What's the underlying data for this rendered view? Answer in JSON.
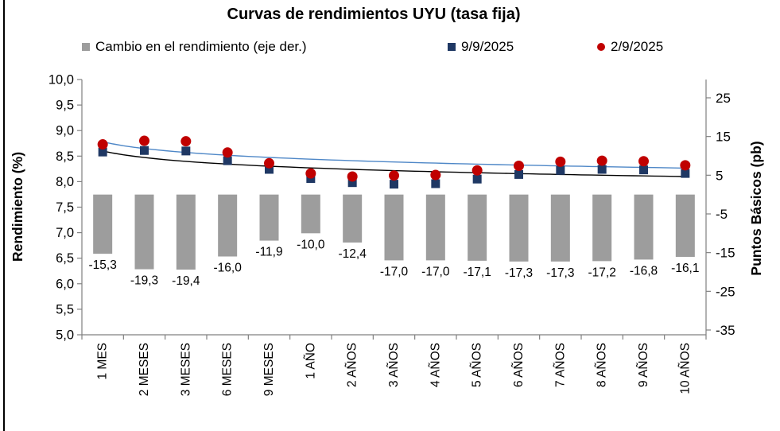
{
  "chart_data": {
    "type": "combo (bar + scatter + trendlines)",
    "title": "Curvas de rendimientos UYU (tasa fija)",
    "categories": [
      "1 MES",
      "2 MESES",
      "3 MESES",
      "6 MESES",
      "9 MESES",
      "1 AÑO",
      "2 AÑOS",
      "3 AÑOS",
      "4 AÑOS",
      "5 AÑOS",
      "6 AÑOS",
      "7 AÑOS",
      "8 AÑOS",
      "9 AÑOS",
      "10 AÑOS"
    ],
    "left_axis": {
      "label": "Rendimiento (%)",
      "min": 5.0,
      "max": 10.0,
      "step": 0.5,
      "tick_labels": [
        "10,0",
        "9,5",
        "9,0",
        "8,5",
        "8,0",
        "7,5",
        "7,0",
        "6,5",
        "6,0",
        "5,5",
        "5,0"
      ]
    },
    "right_axis": {
      "label": "Puntos Básicos (pb)",
      "min": -35,
      "max": 25,
      "step": 10,
      "tick_labels": [
        "25",
        "15",
        "5",
        "-5",
        "-15",
        "-25",
        "-35"
      ]
    },
    "series": [
      {
        "name": "Cambio en el rendimiento (eje der.)",
        "type": "bar",
        "axis": "right",
        "color": "#9D9D9D",
        "values": [
          -15.3,
          -19.3,
          -19.4,
          -16.0,
          -11.9,
          -10.0,
          -12.4,
          -17.0,
          -17.0,
          -17.1,
          -17.3,
          -17.3,
          -17.2,
          -16.8,
          -16.1
        ],
        "value_labels": [
          "-15,3",
          "-19,3",
          "-19,4",
          "-16,0",
          "-11,9",
          "-10,0",
          "-12,4",
          "-17,0",
          "-17,0",
          "-17,1",
          "-17,3",
          "-17,3",
          "-17,2",
          "-16,8",
          "-16,1"
        ]
      },
      {
        "name": "9/9/2025",
        "type": "scatter",
        "marker": "square",
        "axis": "left",
        "color": "#1F3864",
        "values": [
          8.58,
          8.61,
          8.6,
          8.41,
          8.24,
          8.06,
          7.98,
          7.95,
          7.96,
          8.05,
          8.14,
          8.22,
          8.24,
          8.23,
          8.16
        ]
      },
      {
        "name": "2/9/2025",
        "type": "scatter",
        "marker": "circle",
        "axis": "left",
        "color": "#C00000",
        "values": [
          8.73,
          8.8,
          8.79,
          8.57,
          8.36,
          8.16,
          8.1,
          8.12,
          8.13,
          8.22,
          8.31,
          8.39,
          8.41,
          8.4,
          8.32
        ]
      }
    ],
    "trendlines": [
      {
        "for": "2/9/2025",
        "fit": "logarithmic",
        "a": 8.78,
        "b": -0.19,
        "color": "#4E87C7"
      },
      {
        "for": "9/9/2025",
        "fit": "logarithmic",
        "a": 8.6,
        "b": -0.185,
        "color": "#000000"
      }
    ],
    "legend": {
      "position": "top",
      "items": [
        {
          "label": "Cambio en el rendimiento (eje der.)",
          "swatch": "square",
          "color": "#9D9D9D"
        },
        {
          "label": "9/9/2025",
          "swatch": "square",
          "color": "#1F3864"
        },
        {
          "label": "2/9/2025",
          "swatch": "circle",
          "color": "#C00000"
        }
      ]
    },
    "grid": "off",
    "background": "#FFFFFF",
    "axis_line_color": "#808080"
  }
}
